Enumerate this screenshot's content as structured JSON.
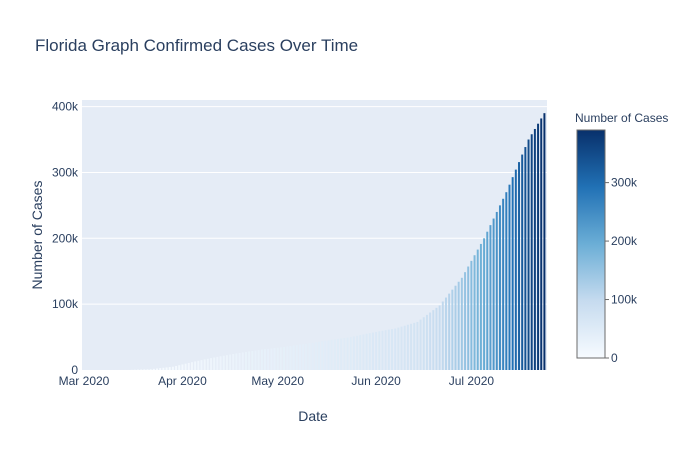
{
  "chart_data": {
    "type": "bar",
    "title": "Florida Graph Confirmed Cases Over Time",
    "xlabel": "Date",
    "ylabel": "Number of Cases",
    "ylim": [
      0,
      410000
    ],
    "grid": true,
    "x_start": "2020-03-01",
    "x_ticks": [
      "Mar 2020",
      "Apr 2020",
      "May 2020",
      "Jun 2020",
      "Jul 2020"
    ],
    "y_ticks": [
      "0",
      "100k",
      "200k",
      "300k",
      "400k"
    ],
    "colorbar": {
      "title": "Number of Cases",
      "ticks": [
        "0",
        "100k",
        "200k",
        "300k"
      ],
      "range": [
        0,
        390000
      ],
      "colorscale": [
        "#f7fbff",
        "#c6dbef",
        "#6baed6",
        "#2171b5",
        "#08306b"
      ]
    },
    "series": [
      {
        "dates": [
          "2020-03-01",
          "2020-03-08",
          "2020-03-15",
          "2020-03-22",
          "2020-03-29",
          "2020-04-05",
          "2020-04-12",
          "2020-04-19",
          "2020-04-26",
          "2020-05-03",
          "2020-05-10",
          "2020-05-17",
          "2020-05-24",
          "2020-05-31",
          "2020-06-07",
          "2020-06-14",
          "2020-06-21",
          "2020-06-28",
          "2020-07-05",
          "2020-07-12",
          "2020-07-19",
          "2020-07-24"
        ],
        "values": [
          2,
          10,
          100,
          1200,
          5000,
          13000,
          20000,
          26000,
          31000,
          35000,
          40000,
          45000,
          50000,
          57000,
          63000,
          73000,
          98000,
          140000,
          200000,
          270000,
          350000,
          390000
        ]
      }
    ]
  }
}
